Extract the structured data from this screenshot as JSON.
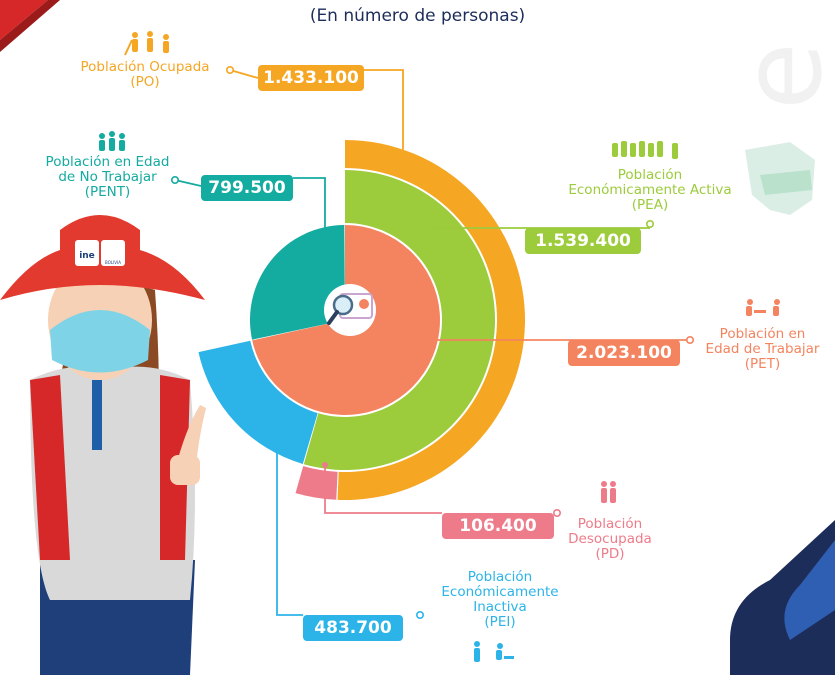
{
  "subtitle": "(En número de personas)",
  "colors": {
    "po": "#f5a623",
    "pea": "#9ccb3b",
    "pet": "#f4845f",
    "pent": "#14aba0",
    "pei": "#2cb4e8",
    "pd": "#ee7b8a",
    "navy": "#1d2d5a"
  },
  "labels": {
    "po": [
      "Población Ocupada",
      "(PO)"
    ],
    "pent": [
      "Población en Edad",
      "de No Trabajar",
      "(PENT)"
    ],
    "pea": [
      "Población",
      "Económicamente Activa",
      "(PEA)"
    ],
    "pet": [
      "Población en",
      "Edad de Trabajar",
      "(PET)"
    ],
    "pd": [
      "Población",
      "Desocupada",
      "(PD)"
    ],
    "pei": [
      "Población",
      "Económicamente",
      "Inactiva",
      "(PEI)"
    ]
  },
  "badges": {
    "hat": "ine",
    "hat2": "BOLIVIA"
  },
  "chart_data": {
    "type": "pie",
    "rings": [
      {
        "ring": "inner",
        "categories": [
          "PET",
          "PENT"
        ],
        "values": [
          2023100,
          799500
        ]
      },
      {
        "ring": "middle",
        "categories": [
          "PEA",
          "PEI"
        ],
        "values": [
          1539400,
          483700
        ]
      },
      {
        "ring": "outer",
        "categories": [
          "PO",
          "PD"
        ],
        "values": [
          1433100,
          106400
        ]
      }
    ],
    "value_labels": {
      "po": "1.433.100",
      "pent": "799.500",
      "pea": "1.539.400",
      "pet": "2.023.100",
      "pd": "106.400",
      "pei": "483.700"
    }
  }
}
